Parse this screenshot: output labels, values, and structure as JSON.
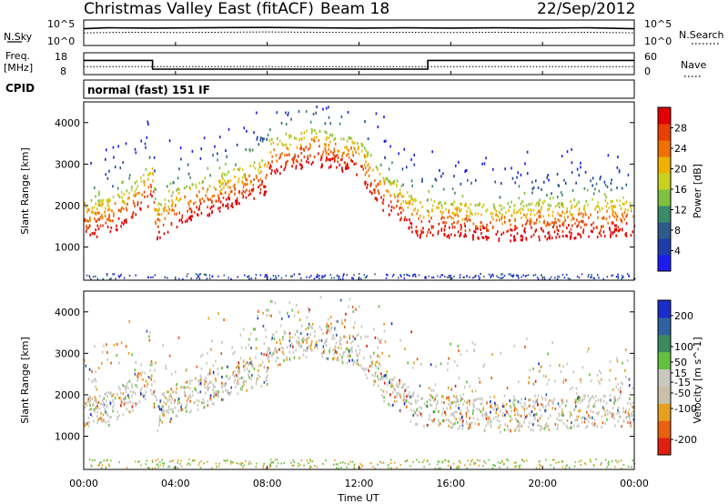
{
  "header": {
    "radar": "Christmas Valley East (fitACF)",
    "beam": "Beam 18",
    "date": "22/Sep/2012"
  },
  "nsky_panel": {
    "left_label": "N.Sky",
    "right_label": "N.Search",
    "tick_hi": "10^5",
    "tick_lo": "10^0"
  },
  "freq_panel": {
    "left_label_1": "Freq.",
    "left_label_2": "[MHz]",
    "right_label": "Nave",
    "left_ticks": [
      "18",
      "8"
    ],
    "right_ticks": [
      "60",
      "0"
    ]
  },
  "cpid": {
    "label": "CPID",
    "value": "normal (fast) 151 IF"
  },
  "colors": {
    "power_scale": [
      "#1c1cf0",
      "#1d3ea8",
      "#2d5c8c",
      "#3b8a6a",
      "#80c040",
      "#c8d020",
      "#f0b000",
      "#f07000",
      "#e84000",
      "#e00000"
    ],
    "velocity_scale": [
      "#1c2cc8",
      "#2f62a0",
      "#3c8a60",
      "#66c040",
      "#c8c8c0",
      "#c8c0a8",
      "#e8a020",
      "#e86010",
      "#e02010"
    ]
  },
  "chart_data": [
    {
      "type": "line",
      "title": "",
      "series": [
        {
          "name": "N.Sky",
          "x_hours": [
            0,
            1,
            3,
            5,
            8,
            10,
            12,
            14,
            16,
            18,
            20,
            22,
            24
          ],
          "values": [
            2000,
            3000,
            2500,
            3000,
            3500,
            3000,
            2500,
            3000,
            2500,
            3000,
            2500,
            3000,
            2000
          ]
        },
        {
          "name": "N.Search",
          "x_hours": [
            0,
            2,
            4,
            6,
            8,
            10,
            12,
            14,
            16,
            18,
            20,
            22,
            24
          ],
          "values": [
            300,
            400,
            350,
            400,
            450,
            400,
            350,
            400,
            350,
            400,
            350,
            400,
            300
          ]
        }
      ],
      "y_scale": "log",
      "ylim": [
        1,
        100000
      ]
    },
    {
      "type": "line",
      "title": "",
      "series": [
        {
          "name": "Freq.",
          "x_hours": [
            0,
            3,
            3,
            15,
            15,
            24
          ],
          "values": [
            14.5,
            14.5,
            10.5,
            10.5,
            14.5,
            14.5
          ]
        },
        {
          "name": "Nave",
          "x_hours": [
            0,
            24
          ],
          "values": [
            22,
            22
          ]
        }
      ],
      "ylim_freq": [
        8,
        18
      ],
      "ylim_nave": [
        0,
        60
      ]
    },
    {
      "type": "heatmap",
      "title": "",
      "ylabel": "Slant Range [km]",
      "xlabel": "Time UT",
      "x_ticks": [
        "00:00",
        "04:00",
        "08:00",
        "12:00",
        "16:00",
        "20:00",
        "00:00"
      ],
      "y_ticks": [
        1000,
        2000,
        3000,
        4000
      ],
      "ylim": [
        200,
        4500
      ],
      "colorbar_label": "Power [dB]",
      "colorbar_ticks": [
        4,
        8,
        12,
        16,
        20,
        24,
        28
      ],
      "colorbar_range": [
        0,
        32
      ],
      "echo_bands": [
        {
          "x_hours": [
            0,
            1,
            2,
            3,
            3.1,
            4,
            6,
            8
          ],
          "range_km": [
            1350,
            1400,
            1700,
            2200,
            1250,
            1600,
            2000,
            2400
          ]
        },
        {
          "x_hours": [
            8,
            10,
            12,
            13,
            14,
            15
          ],
          "range_km": [
            2800,
            3100,
            2800,
            2000,
            1600,
            1200
          ]
        },
        {
          "x_hours": [
            15,
            16,
            18,
            20,
            22,
            24
          ],
          "range_km": [
            1400,
            1350,
            1250,
            1300,
            1350,
            1400
          ]
        }
      ]
    },
    {
      "type": "heatmap",
      "title": "",
      "ylabel": "Slant Range [km]",
      "xlabel": "Time UT",
      "x_ticks": [
        "00:00",
        "04:00",
        "08:00",
        "12:00",
        "16:00",
        "20:00",
        "00:00"
      ],
      "y_ticks": [
        1000,
        2000,
        3000,
        4000
      ],
      "ylim": [
        200,
        4500
      ],
      "colorbar_label": "Velocity [m s^-1]",
      "colorbar_ticks": [
        200,
        100,
        50,
        15,
        -15,
        -50,
        -100,
        -200
      ],
      "colorbar_range": [
        -250,
        250
      ]
    }
  ]
}
